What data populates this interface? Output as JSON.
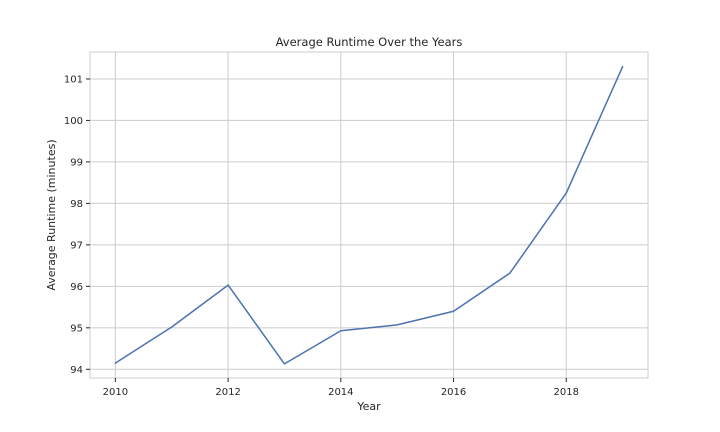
{
  "chart_data": {
    "type": "line",
    "title": "Average Runtime Over the Years",
    "xlabel": "Year",
    "ylabel": "Average Runtime (minutes)",
    "x": [
      2010,
      2011,
      2012,
      2013,
      2014,
      2015,
      2016,
      2017,
      2018,
      2019
    ],
    "series": [
      {
        "values": [
          94.15,
          95.02,
          96.03,
          94.13,
          94.93,
          95.07,
          95.4,
          96.32,
          98.25,
          101.3
        ],
        "color": "#4c72b0"
      }
    ],
    "xlim": [
      2009.55,
      2019.45
    ],
    "ylim": [
      93.79,
      101.65
    ],
    "xticks": [
      "2010",
      "2012",
      "2014",
      "2016",
      "2018"
    ],
    "yticks": [
      "94",
      "95",
      "96",
      "97",
      "98",
      "99",
      "100",
      "101"
    ],
    "grid": true
  }
}
